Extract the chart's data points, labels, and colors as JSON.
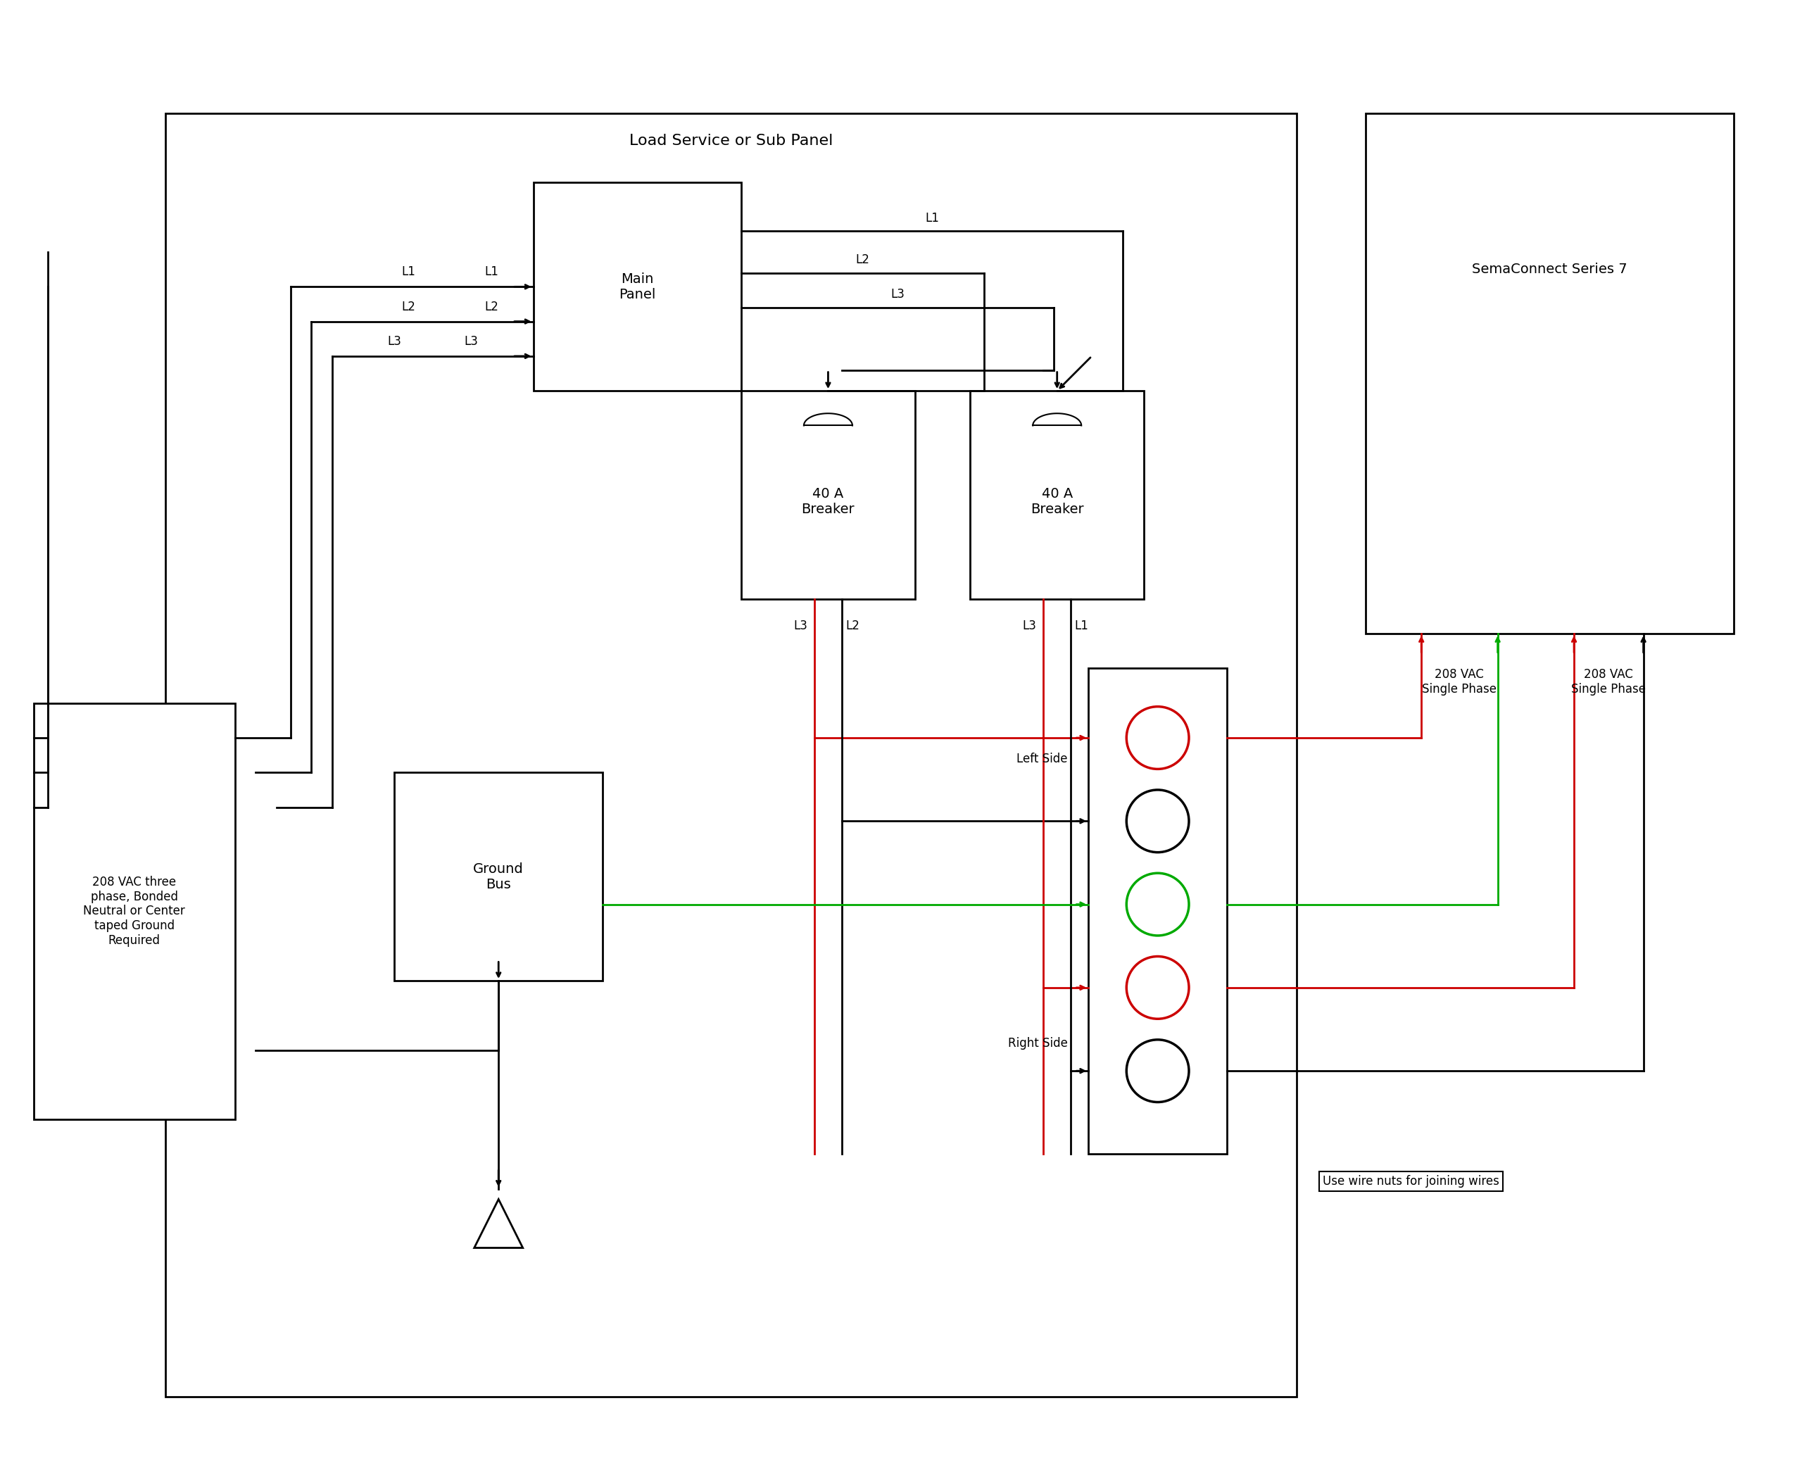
{
  "title": "Load Service or Sub Panel",
  "semaconnect_label": "SemaConnect Series 7",
  "source_label": "208 VAC three\nphase, Bonded\nNeutral or Center\ntaped Ground\nRequired",
  "ground_bus_label": "Ground\nBus",
  "main_panel_label": "Main\nPanel",
  "breaker1_label": "40 A\nBreaker",
  "breaker2_label": "40 A\nBreaker",
  "left_side_label": "Left Side",
  "right_side_label": "Right Side",
  "wire_nuts_label": "Use wire nuts for joining wires",
  "vac_left_label": "208 VAC\nSingle Phase",
  "vac_right_label": "208 VAC\nSingle Phase",
  "bg_color": "#ffffff",
  "line_color": "#000000",
  "red_color": "#cc0000",
  "green_color": "#00aa00",
  "font_size": 14,
  "small_font": 12
}
